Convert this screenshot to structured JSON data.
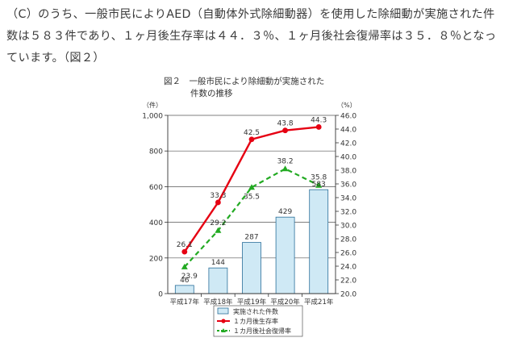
{
  "text": {
    "lines": [
      "（C）のうち、一般市民によりAED（自動体外式除細動器）を使用した除細動が実施された件",
      "数は５８３件であり、１ヶ月後生存率は４４．３％、１ヶ月後社会復帰率は３５．８％となっ",
      "ています。（図２）"
    ]
  },
  "chart_data": {
    "type": "bar",
    "title": "図２　一般市民により除細動が実施された件数の推移",
    "title_lines": [
      "図２　一般市民により除細動が実施された",
      "件数の推移"
    ],
    "categories": [
      "平成17年",
      "平成18年",
      "平成19年",
      "平成20年",
      "平成21年"
    ],
    "left_axis": {
      "unit": "（件）",
      "ylim": [
        0,
        1000
      ],
      "ticks": [
        0,
        200,
        400,
        600,
        800,
        1000
      ],
      "tick_labels": [
        "0",
        "200",
        "400",
        "600",
        "800",
        "1,000"
      ]
    },
    "right_axis": {
      "unit": "（%）",
      "ylim": [
        20.0,
        46.0
      ],
      "ticks": [
        20.0,
        22.0,
        24.0,
        26.0,
        28.0,
        30.0,
        32.0,
        34.0,
        36.0,
        38.0,
        40.0,
        42.0,
        44.0,
        46.0
      ],
      "tick_labels": [
        "20.0",
        "22.0",
        "24.0",
        "26.0",
        "28.0",
        "30.0",
        "32.0",
        "34.0",
        "36.0",
        "38.0",
        "40.0",
        "42.0",
        "44.0",
        "46.0"
      ]
    },
    "series": [
      {
        "name": "実施された件数",
        "type": "bar",
        "axis": "left",
        "color": "#cfe9f5",
        "values": [
          46,
          144,
          287,
          429,
          583
        ],
        "labels": [
          "46",
          "144",
          "287",
          "429",
          "583"
        ]
      },
      {
        "name": "１カ月後生存率",
        "type": "line",
        "axis": "right",
        "color": "#e60012",
        "values": [
          26.1,
          33.3,
          42.5,
          43.8,
          44.3
        ],
        "labels": [
          "26.1",
          "33.3",
          "42.5",
          "43.8",
          "44.3"
        ]
      },
      {
        "name": "１カ月後社会復帰率",
        "type": "line",
        "axis": "right",
        "color": "#22aa22",
        "values": [
          23.9,
          29.2,
          35.5,
          38.2,
          35.8
        ],
        "labels": [
          "23.9",
          "29.2",
          "35.5",
          "38.2",
          "35.8"
        ]
      }
    ],
    "grid": true,
    "legend": "bottom"
  }
}
